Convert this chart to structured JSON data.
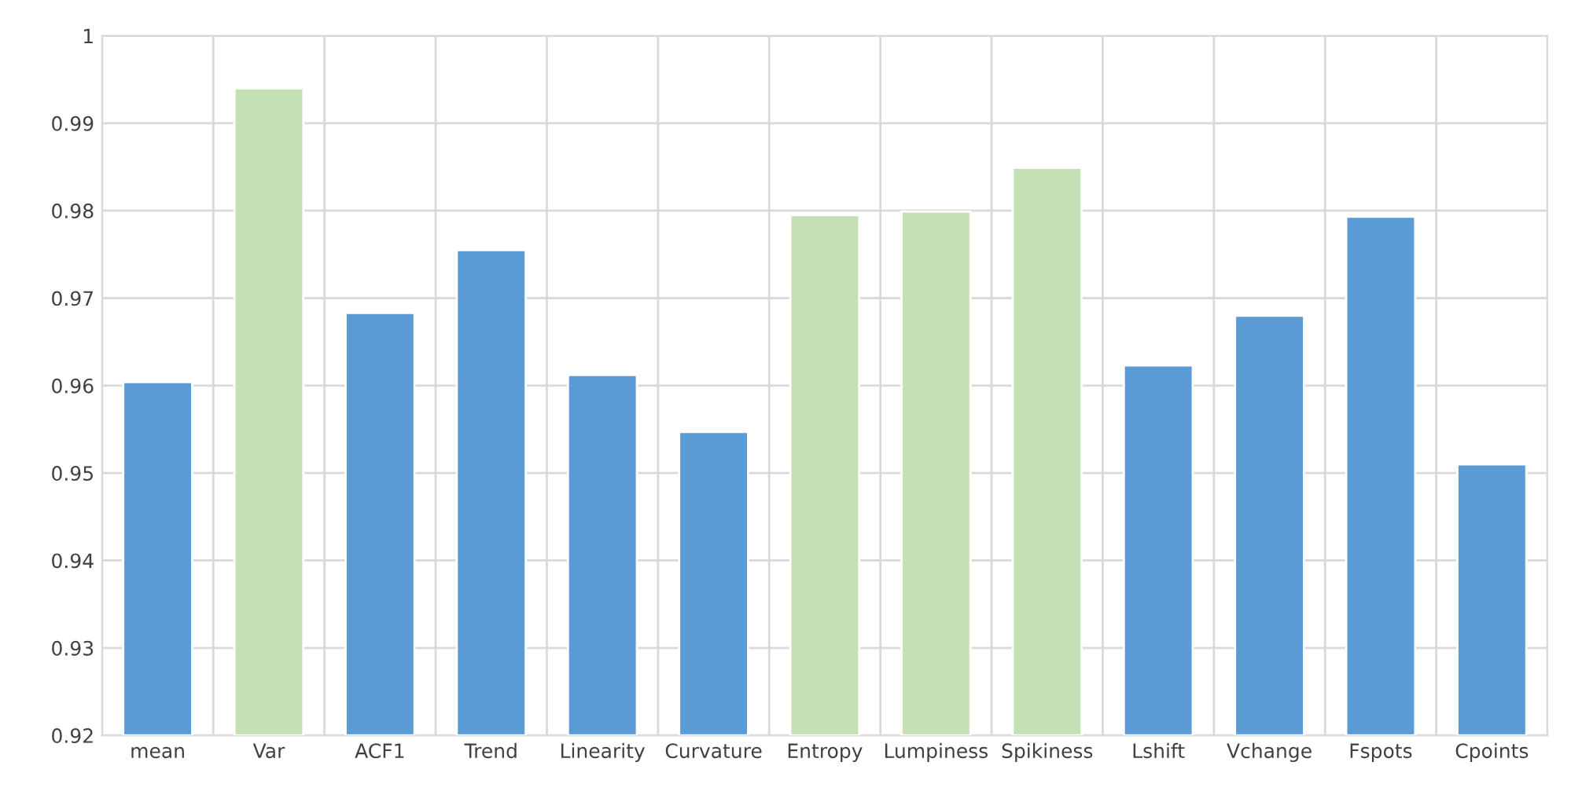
{
  "chart_data": {
    "type": "bar",
    "categories": [
      "mean",
      "Var",
      "ACF1",
      "Trend",
      "Linearity",
      "Curvature",
      "Entropy",
      "Lumpiness",
      "Spikiness",
      "Lshift",
      "Vchange",
      "Fspots",
      "Cpoints"
    ],
    "values": [
      0.9604,
      0.994,
      0.9683,
      0.9755,
      0.9612,
      0.9547,
      0.9795,
      0.9799,
      0.9849,
      0.9623,
      0.968,
      0.9793,
      0.951
    ],
    "colors": [
      "#5b9bd5",
      "#c5e0b4",
      "#5b9bd5",
      "#5b9bd5",
      "#5b9bd5",
      "#5b9bd5",
      "#c5e0b4",
      "#c5e0b4",
      "#c5e0b4",
      "#5b9bd5",
      "#5b9bd5",
      "#5b9bd5",
      "#5b9bd5"
    ],
    "ylim": [
      0.92,
      1
    ],
    "yticks": [
      0.92,
      0.93,
      0.94,
      0.95,
      0.96,
      0.97,
      0.98,
      0.99,
      1
    ],
    "grid": true
  }
}
